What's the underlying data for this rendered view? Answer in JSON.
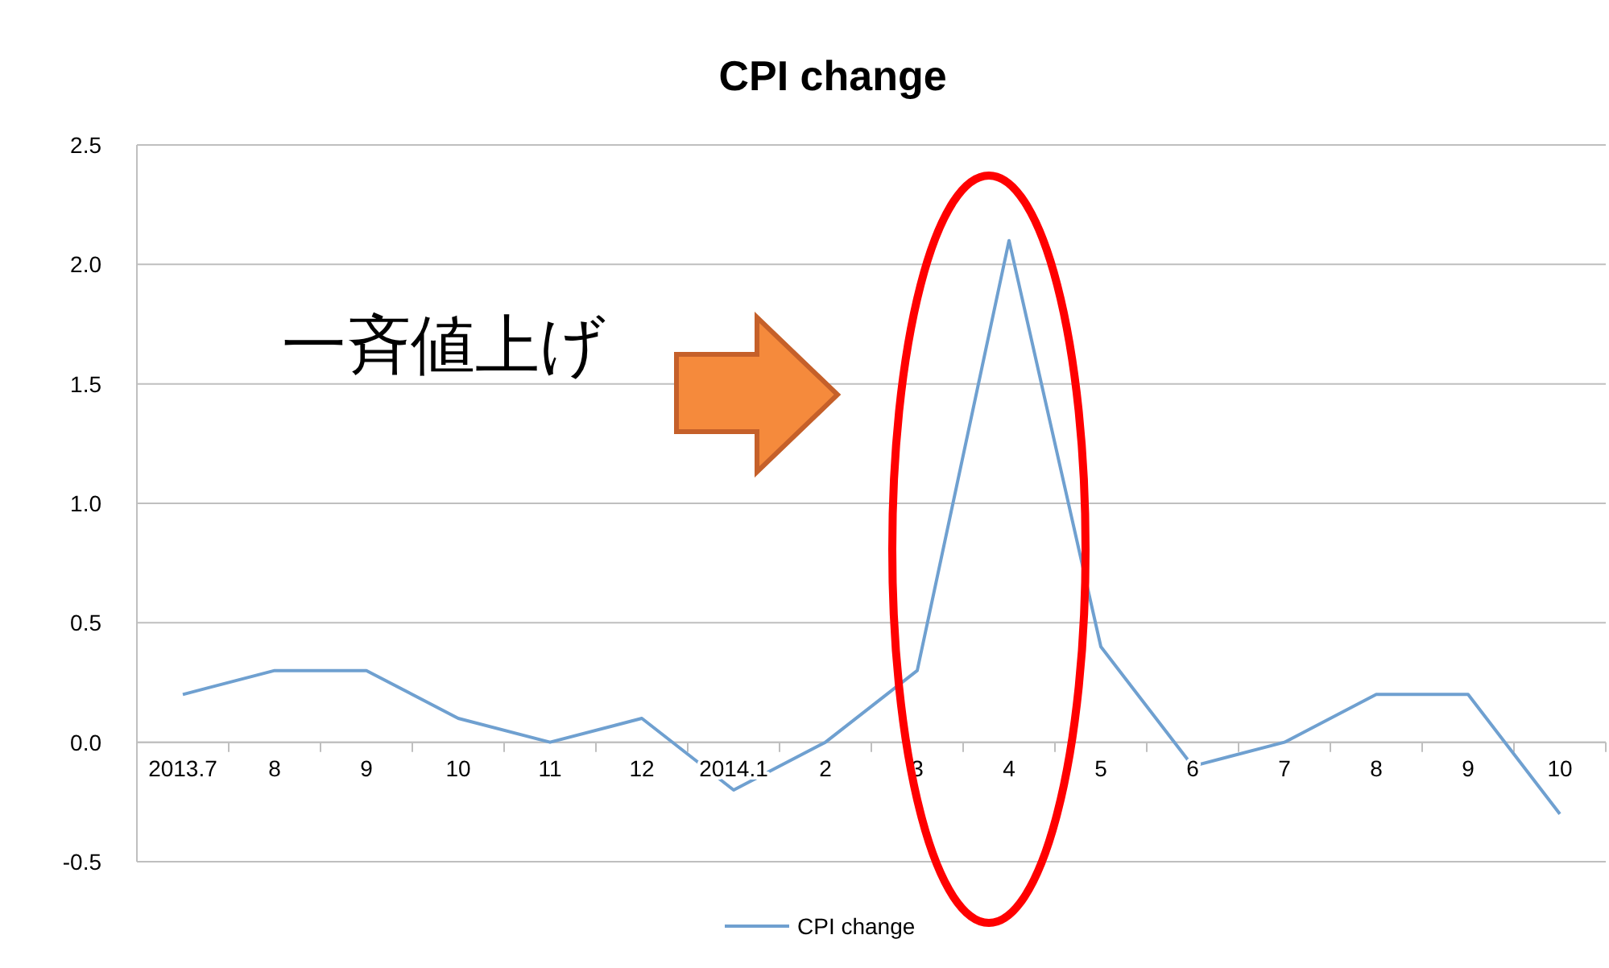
{
  "chart_data": {
    "type": "line",
    "title": "CPI change",
    "categories": [
      "2013.7",
      "8",
      "9",
      "10",
      "11",
      "12",
      "2014.1",
      "2",
      "3",
      "4",
      "5",
      "6",
      "7",
      "8",
      "9",
      "10"
    ],
    "series": [
      {
        "name": "CPI change",
        "color": "#6fa0d0",
        "values": [
          0.2,
          0.3,
          0.3,
          0.1,
          0.0,
          0.1,
          -0.2,
          0.0,
          0.3,
          2.1,
          0.4,
          -0.1,
          0.0,
          0.2,
          0.2,
          -0.3
        ]
      }
    ],
    "ylim": [
      -0.5,
      2.5
    ],
    "yticks": [
      {
        "value": -0.5,
        "label": "-0.5"
      },
      {
        "value": 0,
        "label": "0.0"
      },
      {
        "value": 0.5,
        "label": "0.5"
      },
      {
        "value": 1,
        "label": "1.0"
      },
      {
        "value": 1.5,
        "label": "1.5"
      },
      {
        "value": 2,
        "label": "2.0"
      },
      {
        "value": 2.5,
        "label": "2.5"
      }
    ],
    "grid": "y",
    "legend": "bottom",
    "marker": "none",
    "line_style": "solid",
    "annotations": [
      "一斉値上げ"
    ]
  }
}
